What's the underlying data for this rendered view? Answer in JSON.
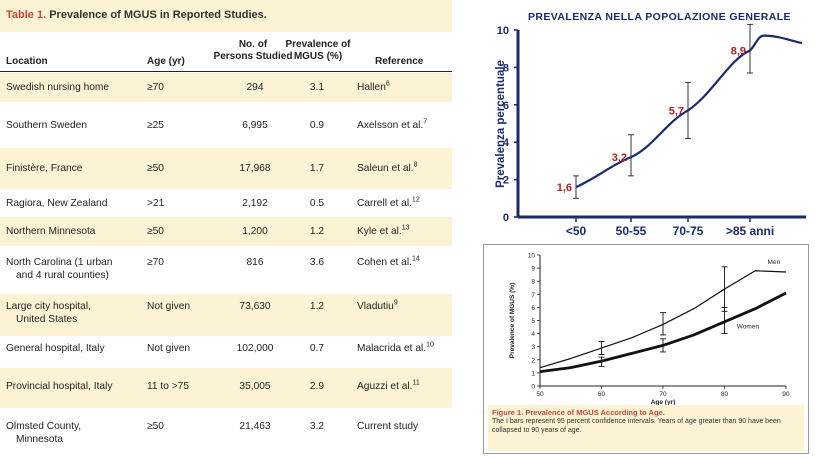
{
  "table": {
    "title_label": "Table 1.",
    "title_text": "Prevalence of MGUS in Reported Studies.",
    "headers": {
      "location": "Location",
      "age": "Age (yr)",
      "persons_1": "No. of",
      "persons_2": "Persons Studied",
      "prevalence_1": "Prevalence of",
      "prevalence_2": "MGUS (%)",
      "reference": "Reference"
    },
    "rows": [
      {
        "location": "Swedish nursing home",
        "age": "≥70",
        "persons": "294",
        "prevalence": "3.1",
        "ref": "Hallen",
        "ref_sup": "6"
      },
      {
        "location": "Southern Sweden",
        "age": "≥25",
        "persons": "6,995",
        "prevalence": "0.9",
        "ref": "Axelsson et al.",
        "ref_sup": "7"
      },
      {
        "location": "Finistère, France",
        "age": "≥50",
        "persons": "17,968",
        "prevalence": "1.7",
        "ref": "Saleun et al.",
        "ref_sup": "8"
      },
      {
        "location": "Ragiora, New Zealand",
        "age": ">21",
        "persons": "2,192",
        "prevalence": "0.5",
        "ref": "Carrell et al.",
        "ref_sup": "12"
      },
      {
        "location": "Northern Minnesota",
        "age": "≥50",
        "persons": "1,200",
        "prevalence": "1.2",
        "ref": "Kyle et al.",
        "ref_sup": "13"
      },
      {
        "location_1": "North Carolina (1 urban",
        "location_2": "and 4 rural counties)",
        "age": "≥70",
        "persons": "816",
        "prevalence": "3.6",
        "ref": "Cohen et al.",
        "ref_sup": "14"
      },
      {
        "location_1": "Large city hospital,",
        "location_2": "United States",
        "age": "Not given",
        "persons": "73,630",
        "prevalence": "1.2",
        "ref": "Vladutiu",
        "ref_sup": "9"
      },
      {
        "location": "General hospital, Italy",
        "age": "Not given",
        "persons": "102,000",
        "prevalence": "0.7",
        "ref": "Malacrida et al.",
        "ref_sup": "10"
      },
      {
        "location": "Provincial hospital, Italy",
        "age": "11 to >75",
        "persons": "35,005",
        "prevalence": "2.9",
        "ref": "Aguzzi et al.",
        "ref_sup": "11"
      },
      {
        "location_1": "Olmsted County,",
        "location_2": "Minnesota",
        "age": "≥50",
        "persons": "21,463",
        "prevalence": "3.2",
        "ref": "Current study",
        "ref_sup": ""
      }
    ]
  },
  "chart_data": [
    {
      "type": "line",
      "title": "PREVALENZA NELLA POPOLAZIONE GENERALE",
      "ylabel": "Prevalenza percentuale",
      "xlabel": "",
      "categories": [
        "<50",
        "50-55",
        "70-75",
        ">85 anni"
      ],
      "ylim": [
        0,
        10
      ],
      "yticks": [
        0,
        2,
        4,
        6,
        8,
        10
      ],
      "series": [
        {
          "values": [
            1.6,
            3.2,
            5.7,
            8.9
          ],
          "labels": [
            "1,6",
            "3,2",
            "5,7",
            "8,9"
          ],
          "ci_low": [
            1.0,
            2.2,
            4.2,
            7.7
          ],
          "ci_high": [
            2.2,
            4.4,
            7.2,
            10.3
          ]
        }
      ],
      "colors": {
        "axis": "#1a2a6c",
        "line": "#1a2a6c",
        "labels": "#b32020",
        "text": "#1a2a6c"
      }
    },
    {
      "type": "line",
      "title": "",
      "ylabel": "Prevalence of MGUS (%)",
      "xlabel": "Age (yr)",
      "xlim": [
        50,
        90
      ],
      "xticks": [
        50,
        60,
        70,
        80,
        90
      ],
      "ylim": [
        0,
        10
      ],
      "yticks": [
        0,
        1,
        2,
        3,
        4,
        5,
        6,
        7,
        8,
        9,
        10
      ],
      "series": [
        {
          "name": "Men",
          "x": [
            50,
            55,
            60,
            65,
            70,
            75,
            80,
            85,
            90
          ],
          "y": [
            1.4,
            2.1,
            2.9,
            3.7,
            4.7,
            5.9,
            7.4,
            8.8,
            8.7
          ]
        },
        {
          "name": "Women",
          "x": [
            50,
            55,
            60,
            65,
            70,
            75,
            80,
            85,
            90
          ],
          "y": [
            1.1,
            1.4,
            1.9,
            2.5,
            3.1,
            3.9,
            4.9,
            5.9,
            7.1
          ]
        }
      ],
      "errorbars": [
        {
          "x": 60,
          "low": 2.4,
          "high": 3.4
        },
        {
          "x": 60,
          "low": 1.5,
          "high": 2.2
        },
        {
          "x": 70,
          "low": 3.9,
          "high": 5.6
        },
        {
          "x": 70,
          "low": 2.6,
          "high": 3.6
        },
        {
          "x": 80,
          "low": 5.7,
          "high": 9.1
        },
        {
          "x": 80,
          "low": 4.0,
          "high": 6.0
        }
      ],
      "caption_title": "Figure 1. Prevalence of MGUS According to Age.",
      "caption_text": "The I bars represent 95 percent confidence intervals. Years of age greater than 90 have been collapsed to 90 years of age."
    }
  ]
}
